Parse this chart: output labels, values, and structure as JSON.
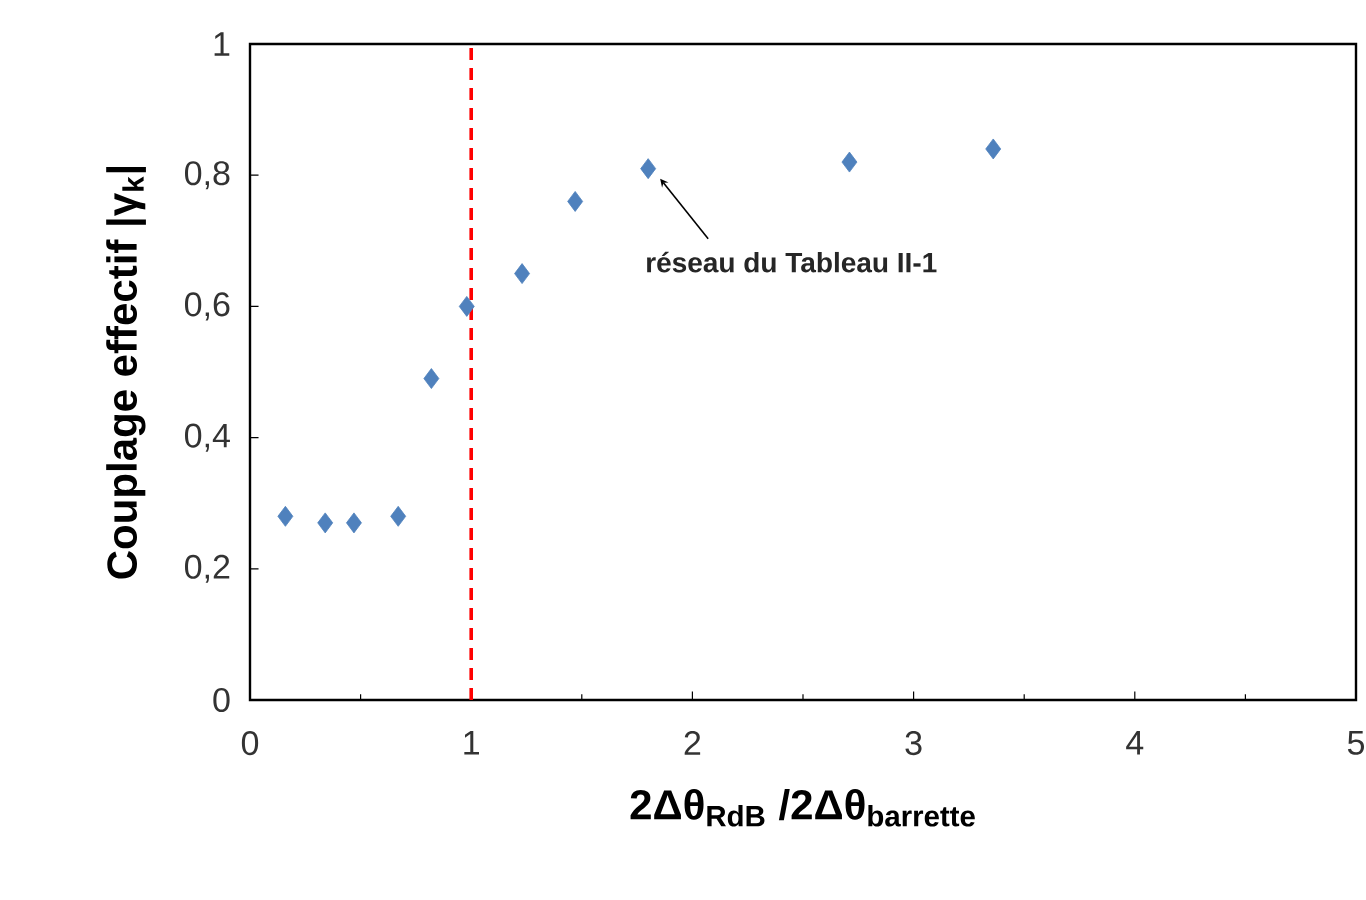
{
  "chart_data": {
    "type": "scatter",
    "xlabel": "2Δθ$_{RdB}$ /2Δθ$_{barrette}$",
    "ylabel": "Couplage effectif |γ$_{k}$|",
    "x": [
      0.16,
      0.34,
      0.47,
      0.67,
      0.82,
      0.98,
      1.23,
      1.47,
      1.8,
      2.71,
      3.36
    ],
    "values": [
      0.28,
      0.27,
      0.27,
      0.28,
      0.49,
      0.6,
      0.65,
      0.76,
      0.81,
      0.82,
      0.84
    ],
    "color": "#4f81bd",
    "marker": "diamond",
    "xlim": [
      0,
      5
    ],
    "xticks": [
      0,
      1,
      2,
      3,
      4,
      5
    ],
    "ylim": [
      0,
      1
    ],
    "yticks": [
      0,
      {
        "value": 0.2,
        "label": "0,2"
      },
      {
        "value": 0.4,
        "label": "0,4"
      },
      {
        "value": 0.6,
        "label": "0,6"
      },
      {
        "value": 0.8,
        "label": "0,8"
      },
      1
    ],
    "ref_lines": [
      {
        "axis": "x",
        "value": 1,
        "color": "#ff0000",
        "line_style": "dashed"
      }
    ],
    "annotations": [
      {
        "text": "réseau du Tableau II-1",
        "x": 1.8,
        "y": 0.81
      }
    ],
    "grid": false
  }
}
